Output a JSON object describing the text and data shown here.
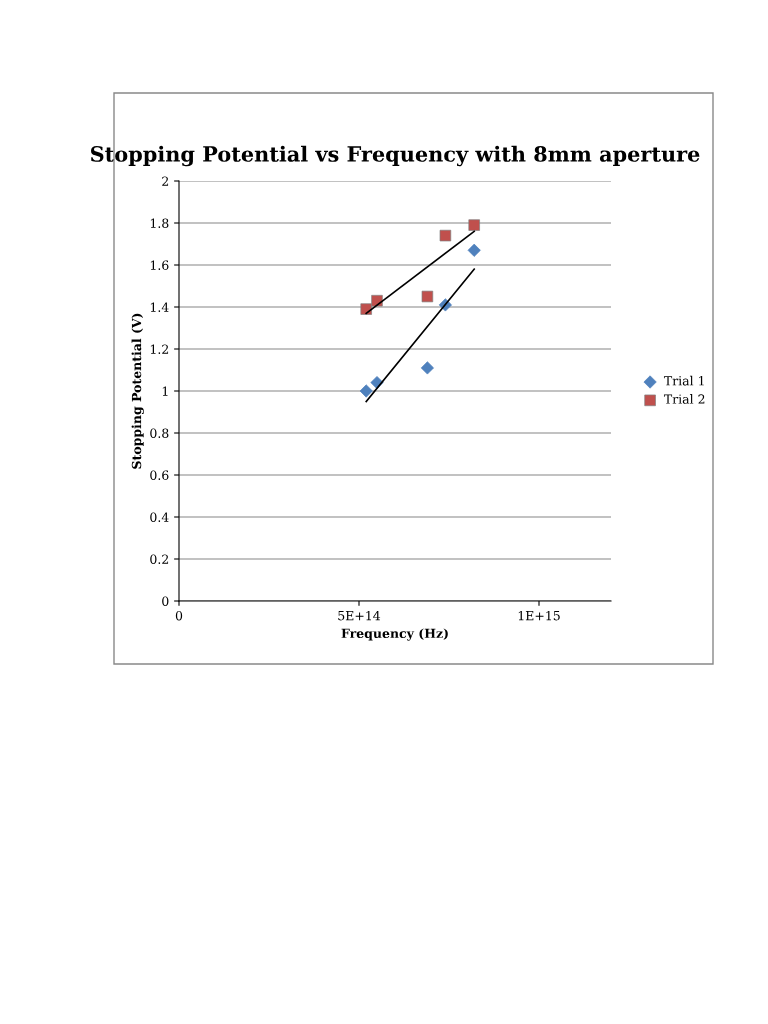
{
  "chart_data": {
    "type": "scatter",
    "title": "Stopping Potential vs Frequency with 8mm aperture",
    "xlabel": "Frequency (Hz)",
    "ylabel": "Stopping Potential (V)",
    "xlim": [
      0,
      1200000000000000.0
    ],
    "xticks": [
      0,
      {
        "value": 500000000000000.0,
        "label": "5E+14"
      },
      {
        "value": 1000000000000000.0,
        "label": "1E+15"
      }
    ],
    "ylim": [
      0,
      2
    ],
    "yticks": [
      0,
      0.2,
      0.4,
      0.6,
      0.8,
      1,
      1.2,
      1.4,
      1.6,
      1.8,
      2
    ],
    "grid": "y",
    "legend": "right",
    "series": [
      {
        "name": "Trial 1",
        "color": "#4f81bd",
        "marker": "diamond",
        "x": [
          520000000000000.0,
          550000000000000.0,
          690000000000000.0,
          740000000000000.0,
          820000000000000.0
        ],
        "values": [
          1.0,
          1.04,
          1.11,
          1.41,
          1.67
        ]
      },
      {
        "name": "Trial 2",
        "color": "#c0504d",
        "marker": "square",
        "x": [
          520000000000000.0,
          550000000000000.0,
          690000000000000.0,
          740000000000000.0,
          820000000000000.0
        ],
        "values": [
          1.39,
          1.43,
          1.45,
          1.74,
          1.79
        ]
      },
      {
        "type": "line",
        "color": "#000000",
        "marker": "none",
        "x": [
          520000000000000.0,
          820000000000000.0
        ],
        "values": [
          0.95,
          1.58
        ]
      },
      {
        "type": "line",
        "color": "#000000",
        "marker": "none",
        "x": [
          520000000000000.0,
          820000000000000.0
        ],
        "values": [
          1.37,
          1.76
        ]
      }
    ]
  }
}
